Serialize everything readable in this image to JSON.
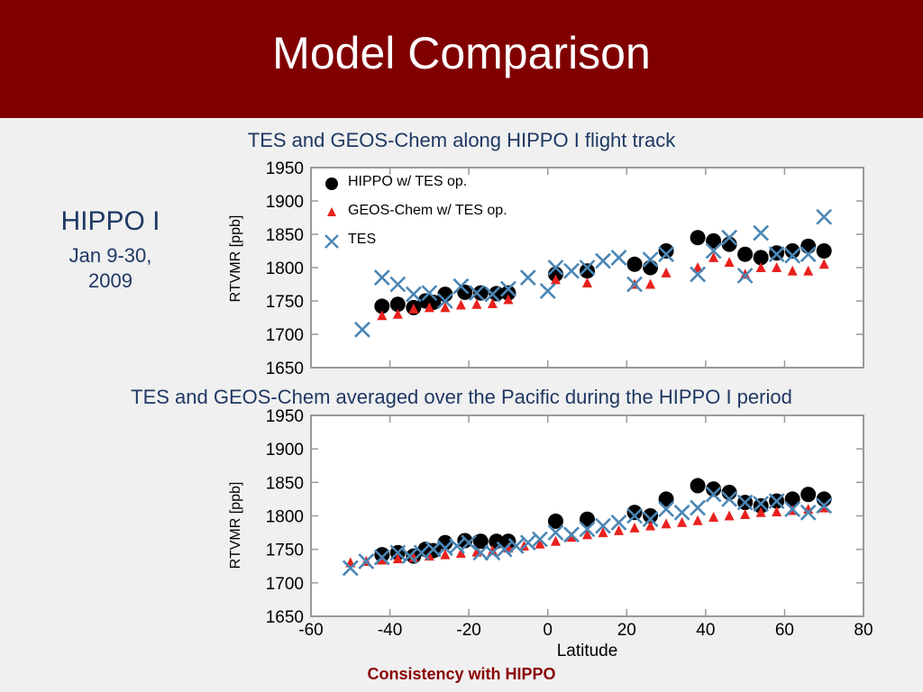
{
  "slide": {
    "title": "Model Comparison",
    "subtitle_top": "TES and GEOS-Chem along HIPPO I flight track",
    "subtitle_bottom": "TES and GEOS-Chem averaged over the Pacific during the HIPPO I period",
    "side_heading": "HIPPO I",
    "side_dates": "Jan 9-30, 2009",
    "footer": "Consistency with HIPPO"
  },
  "colors": {
    "title_bar": "#800000",
    "hippo": "#000000",
    "geos_chem": "#e8211d",
    "tes": "#4a86b5"
  },
  "chart_data": [
    {
      "type": "scatter",
      "title": "TES and GEOS-Chem along HIPPO I flight track",
      "xlabel": "",
      "ylabel": "RTVMR   [ppb]",
      "xlim": [
        -60,
        80
      ],
      "ylim": [
        1650,
        1950
      ],
      "y_ticks": [
        1650,
        1700,
        1750,
        1800,
        1850,
        1900,
        1950
      ],
      "legend": [
        "HIPPO w/ TES op.",
        "GEOS-Chem w/ TES op.",
        "TES"
      ],
      "legend_position": "top-left",
      "series": [
        {
          "name": "HIPPO w/ TES op.",
          "marker": "circle",
          "x": [
            -42,
            -38,
            -34,
            -31,
            -29,
            -26,
            -21,
            -17,
            -13,
            -10,
            2,
            10,
            22,
            26,
            30,
            38,
            42,
            46,
            50,
            54,
            58,
            62,
            66,
            70
          ],
          "y": [
            1742,
            1745,
            1740,
            1750,
            1748,
            1760,
            1763,
            1762,
            1761,
            1762,
            1790,
            1795,
            1805,
            1800,
            1825,
            1845,
            1840,
            1835,
            1820,
            1815,
            1822,
            1825,
            1832,
            1825
          ]
        },
        {
          "name": "GEOS-Chem w/ TES op.",
          "marker": "triangle",
          "x": [
            -42,
            -38,
            -34,
            -30,
            -26,
            -22,
            -18,
            -14,
            -10,
            2,
            10,
            22,
            26,
            30,
            38,
            42,
            46,
            50,
            54,
            58,
            62,
            66,
            70
          ],
          "y": [
            1728,
            1730,
            1738,
            1740,
            1740,
            1744,
            1745,
            1746,
            1752,
            1782,
            1777,
            1775,
            1775,
            1792,
            1800,
            1815,
            1808,
            1790,
            1800,
            1800,
            1795,
            1795,
            1805
          ]
        },
        {
          "name": "TES",
          "marker": "x",
          "x": [
            -47,
            -42,
            -38,
            -34,
            -30,
            -26,
            -22,
            -18,
            -14,
            -10,
            -5,
            0,
            2,
            6,
            10,
            14,
            18,
            22,
            26,
            30,
            38,
            42,
            46,
            50,
            54,
            58,
            62,
            66,
            70
          ],
          "y": [
            1707,
            1785,
            1775,
            1760,
            1762,
            1750,
            1772,
            1762,
            1760,
            1768,
            1785,
            1765,
            1800,
            1795,
            1800,
            1810,
            1815,
            1775,
            1812,
            1820,
            1790,
            1825,
            1845,
            1788,
            1852,
            1820,
            1818,
            1820,
            1876
          ]
        }
      ]
    },
    {
      "type": "scatter",
      "title": "TES and GEOS-Chem averaged over the Pacific during the HIPPO I period",
      "xlabel": "Latitude",
      "ylabel": "RTVMR   [ppb]",
      "xlim": [
        -60,
        80
      ],
      "ylim": [
        1650,
        1950
      ],
      "x_ticks": [
        -60,
        -40,
        -20,
        0,
        20,
        40,
        60,
        80
      ],
      "y_ticks": [
        1650,
        1700,
        1750,
        1800,
        1850,
        1900,
        1950
      ],
      "series": [
        {
          "name": "HIPPO w/ TES op.",
          "marker": "circle",
          "x": [
            -42,
            -38,
            -34,
            -31,
            -29,
            -26,
            -21,
            -17,
            -13,
            -10,
            2,
            10,
            22,
            26,
            30,
            38,
            42,
            46,
            50,
            54,
            58,
            62,
            66,
            70
          ],
          "y": [
            1742,
            1745,
            1740,
            1750,
            1748,
            1760,
            1763,
            1762,
            1762,
            1762,
            1792,
            1795,
            1805,
            1800,
            1825,
            1845,
            1840,
            1835,
            1820,
            1815,
            1822,
            1825,
            1832,
            1825
          ]
        },
        {
          "name": "GEOS-Chem w/ TES op.",
          "marker": "triangle",
          "x": [
            -50,
            -46,
            -42,
            -38,
            -34,
            -30,
            -26,
            -22,
            -18,
            -14,
            -10,
            -6,
            -2,
            2,
            6,
            10,
            14,
            18,
            22,
            26,
            30,
            34,
            38,
            42,
            46,
            50,
            54,
            58,
            62,
            66,
            70
          ],
          "y": [
            1730,
            1732,
            1734,
            1736,
            1738,
            1740,
            1742,
            1744,
            1746,
            1748,
            1752,
            1755,
            1758,
            1762,
            1768,
            1772,
            1775,
            1778,
            1782,
            1785,
            1788,
            1790,
            1793,
            1798,
            1800,
            1802,
            1805,
            1806,
            1808,
            1810,
            1812
          ]
        },
        {
          "name": "TES",
          "marker": "x",
          "x": [
            -50,
            -46,
            -42,
            -38,
            -35,
            -32,
            -29,
            -26,
            -23,
            -20,
            -17,
            -14,
            -11,
            -8,
            -5,
            -2,
            2,
            6,
            10,
            14,
            18,
            22,
            26,
            30,
            34,
            38,
            42,
            46,
            50,
            54,
            58,
            62,
            66,
            70
          ],
          "y": [
            1722,
            1732,
            1738,
            1745,
            1740,
            1745,
            1750,
            1752,
            1755,
            1760,
            1745,
            1745,
            1750,
            1755,
            1760,
            1765,
            1775,
            1772,
            1780,
            1785,
            1790,
            1800,
            1795,
            1810,
            1805,
            1812,
            1832,
            1825,
            1820,
            1818,
            1822,
            1810,
            1805,
            1815
          ]
        }
      ]
    }
  ]
}
